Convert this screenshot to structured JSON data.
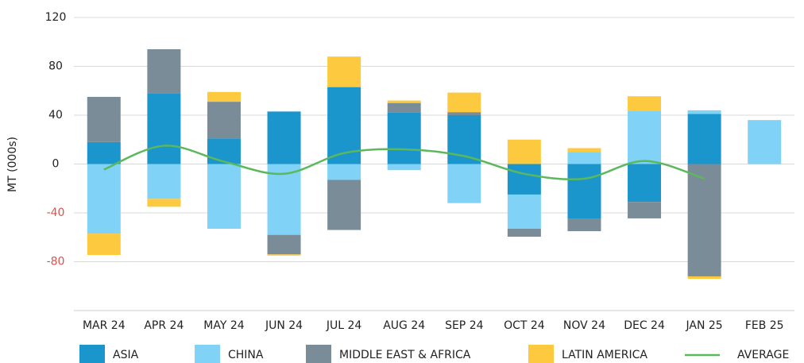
{
  "chart_data": {
    "type": "stacked_bar_line",
    "y_label": "MT (000s)",
    "categories": [
      "MAR 24",
      "APR 24",
      "MAY 24",
      "JUN 24",
      "JUL 24",
      "AUG 24",
      "SEP 24",
      "OCT 24",
      "NOV 24",
      "DEC 24",
      "JAN 25",
      "FEB 25"
    ],
    "series": [
      {
        "name": "ASIA",
        "color": "#1a96cc",
        "values": [
          18,
          58,
          21,
          43,
          63,
          42,
          40,
          -25,
          -45,
          -31,
          41,
          0
        ]
      },
      {
        "name": "CHINA",
        "color": "#80d3f7",
        "values": [
          -57,
          -28.5,
          -53,
          -58,
          -13,
          -5,
          -32,
          -28,
          10,
          43.5,
          3,
          36
        ]
      },
      {
        "name": "MIDDLE EAST & AFRICA",
        "color": "#7a8c98",
        "values": [
          37,
          36,
          30,
          -16,
          -41,
          8,
          2.5,
          -6.5,
          -10,
          -13.5,
          -92,
          0
        ]
      },
      {
        "name": "LATIN AMERICA",
        "color": "#fdc93f",
        "values": [
          -17.5,
          -6.5,
          8,
          -1,
          25,
          2,
          16,
          20,
          3,
          12,
          -2,
          0
        ]
      }
    ],
    "line_series": {
      "name": "AVERAGE",
      "color": "#5cb85c",
      "values": [
        -4.5,
        15,
        2,
        -8,
        9,
        12,
        6.5,
        -8,
        -12,
        2.5,
        -12,
        null
      ]
    },
    "ylim": [
      -120,
      120
    ],
    "yticks": [
      120,
      80,
      40,
      0,
      -40,
      -80
    ],
    "negative_tick_color": "#d9534f",
    "grid": true
  }
}
